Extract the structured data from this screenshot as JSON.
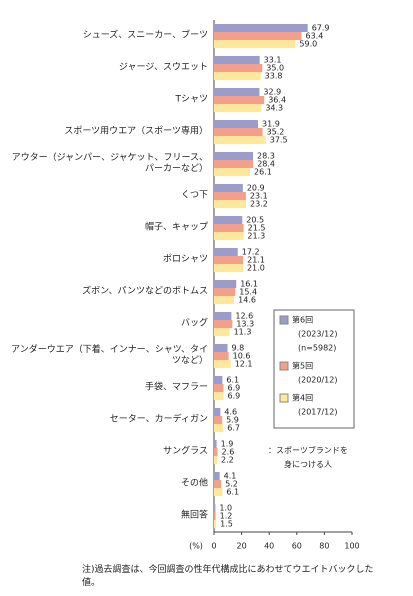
{
  "chart_data": {
    "type": "bar",
    "orientation": "horizontal",
    "categories": [
      "シューズ、スニーカー、ブーツ",
      "ジャージ、スウエット",
      "Tシャツ",
      "スポーツ用ウエア（スポーツ専用）",
      "アウター（ジャンパー、ジャケット、フリース、パーカーなど）",
      "くつ下",
      "帽子、キャップ",
      "ポロシャツ",
      "ズボン、パンツなどのボトムス",
      "バッグ",
      "アンダーウエア（下着、インナー、シャツ、タイツなど）",
      "手袋、マフラー",
      "セーター、カーディガン",
      "サングラス",
      "その他",
      "無回答"
    ],
    "series": [
      {
        "name": "第6回",
        "period": "(2023/12)",
        "n": "(n=5982)",
        "color": "#9c9ccc",
        "values": [
          67.9,
          33.1,
          32.9,
          31.9,
          28.3,
          20.9,
          20.5,
          17.2,
          16.1,
          12.6,
          9.8,
          6.1,
          4.6,
          1.9,
          4.1,
          1.0
        ],
        "value_labels": [
          "67.9",
          "33.1",
          "32.9",
          "31.9",
          "28.3",
          "20.9",
          "20.5",
          "17.2",
          "16.1",
          "12.6",
          "9.8",
          "6.1",
          "4.6",
          "1.9",
          "4.1",
          "1.0"
        ]
      },
      {
        "name": "第5回",
        "period": "(2020/12)",
        "color": "#f4a088",
        "values": [
          63.4,
          35.0,
          36.4,
          35.2,
          28.4,
          23.1,
          21.5,
          21.1,
          15.4,
          13.3,
          10.6,
          6.9,
          5.9,
          2.6,
          5.2,
          1.2
        ],
        "value_labels": [
          "63.4",
          "35.0",
          "36.4",
          "35.2",
          "28.4",
          "23.1",
          "21.5",
          "21.1",
          "15.4",
          "13.3",
          "10.6",
          "6.9",
          "5.9",
          "2.6",
          "5.2",
          "1.2"
        ]
      },
      {
        "name": "第4回",
        "period": "(2017/12)",
        "color": "#ffe89c",
        "values": [
          59.0,
          33.8,
          34.3,
          37.5,
          26.1,
          23.2,
          21.3,
          21.0,
          14.6,
          11.3,
          12.1,
          6.9,
          6.7,
          2.2,
          6.1,
          1.5
        ],
        "value_labels": [
          "59.0",
          "33.8",
          "34.3",
          "37.5",
          "26.1",
          "23.2",
          "21.3",
          "21.0",
          "14.6",
          "11.3",
          "12.1",
          "6.9",
          "6.7",
          "2.2",
          "6.1",
          "1.5"
        ]
      }
    ],
    "xlim": [
      0,
      100
    ],
    "xticks": [
      0,
      20,
      40,
      60,
      80,
      100
    ],
    "x_unit": "(%)",
    "legend_caption": "：スポーツブランドを身につける人",
    "note": "注)過去調査は、今回調査の性年代構成比にあわせてウエイトバックした値。"
  }
}
